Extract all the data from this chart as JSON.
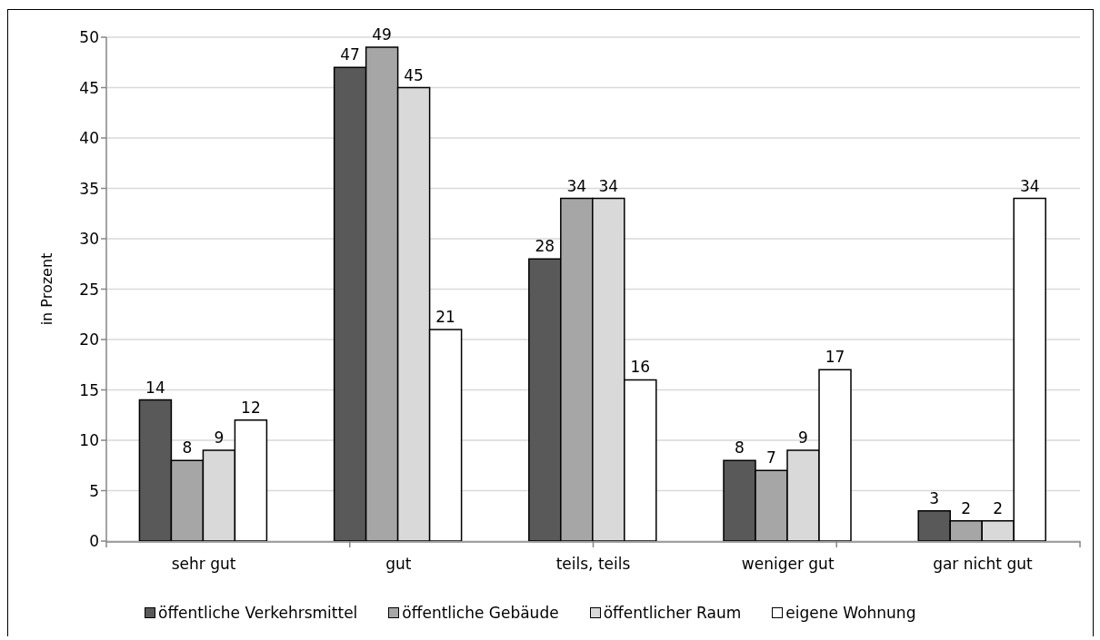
{
  "chart_data": {
    "type": "bar",
    "ylabel": "in Prozent",
    "categories": [
      "sehr gut",
      "gut",
      "teils, teils",
      "weniger gut",
      "gar nicht gut"
    ],
    "series": [
      {
        "name": "öffentliche Verkehrsmittel",
        "color": "#595959",
        "values": [
          14,
          47,
          28,
          8,
          3
        ]
      },
      {
        "name": "öffentliche Gebäude",
        "color": "#a6a6a6",
        "values": [
          8,
          49,
          34,
          7,
          2
        ]
      },
      {
        "name": "öffentlicher Raum",
        "color": "#d9d9d9",
        "values": [
          9,
          45,
          34,
          9,
          2
        ]
      },
      {
        "name": "eigene Wohnung",
        "color": "#ffffff",
        "values": [
          12,
          21,
          16,
          17,
          34
        ]
      }
    ],
    "ylim": [
      0,
      50
    ],
    "yticks": [
      0,
      5,
      10,
      15,
      20,
      25,
      30,
      35,
      40,
      45,
      50
    ],
    "grid": "y",
    "legend": "bottom",
    "data_labels": true
  }
}
